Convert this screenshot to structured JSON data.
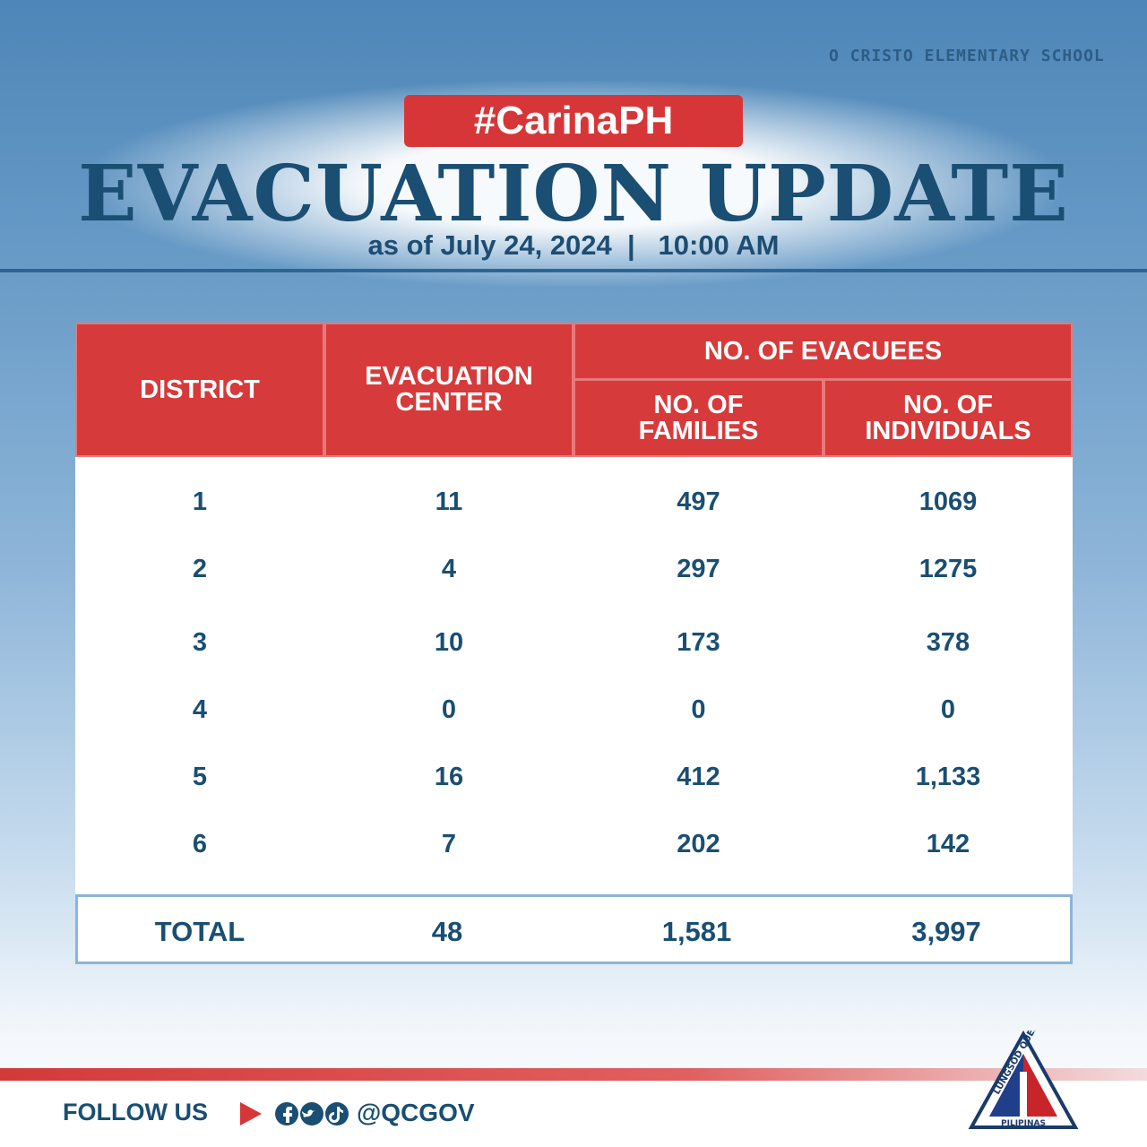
{
  "background": {
    "sign": "O CRISTO ELEMENTARY SCHOOL"
  },
  "header": {
    "hashtag": "#CarinaPH",
    "title": "EVACUATION UPDATE",
    "subtitle": "as of July 24, 2024  |   10:00 AM"
  },
  "table": {
    "columns": [
      "DISTRICT",
      "EVACUATION CENTER",
      "NO. OF FAMILIES",
      "NO. OF INDIVIDUALS"
    ],
    "group_header": "NO. OF EVACUEES",
    "rows": [
      [
        "1",
        "11",
        "497",
        "1069"
      ],
      [
        "2",
        "4",
        "297",
        "1275"
      ],
      [
        "3",
        "10",
        "173",
        "378"
      ],
      [
        "4",
        "0",
        "0",
        "0"
      ],
      [
        "5",
        "16",
        "412",
        "1,133"
      ],
      [
        "6",
        "7",
        "202",
        "142"
      ]
    ],
    "total": [
      "TOTAL",
      "48",
      "1,581",
      "3,997"
    ]
  },
  "footer": {
    "follow": "FOLLOW US",
    "handle": "@QCGOV"
  },
  "logo": {
    "top": "LUNGSOD QUEZON",
    "bottom": "PILIPINAS"
  }
}
